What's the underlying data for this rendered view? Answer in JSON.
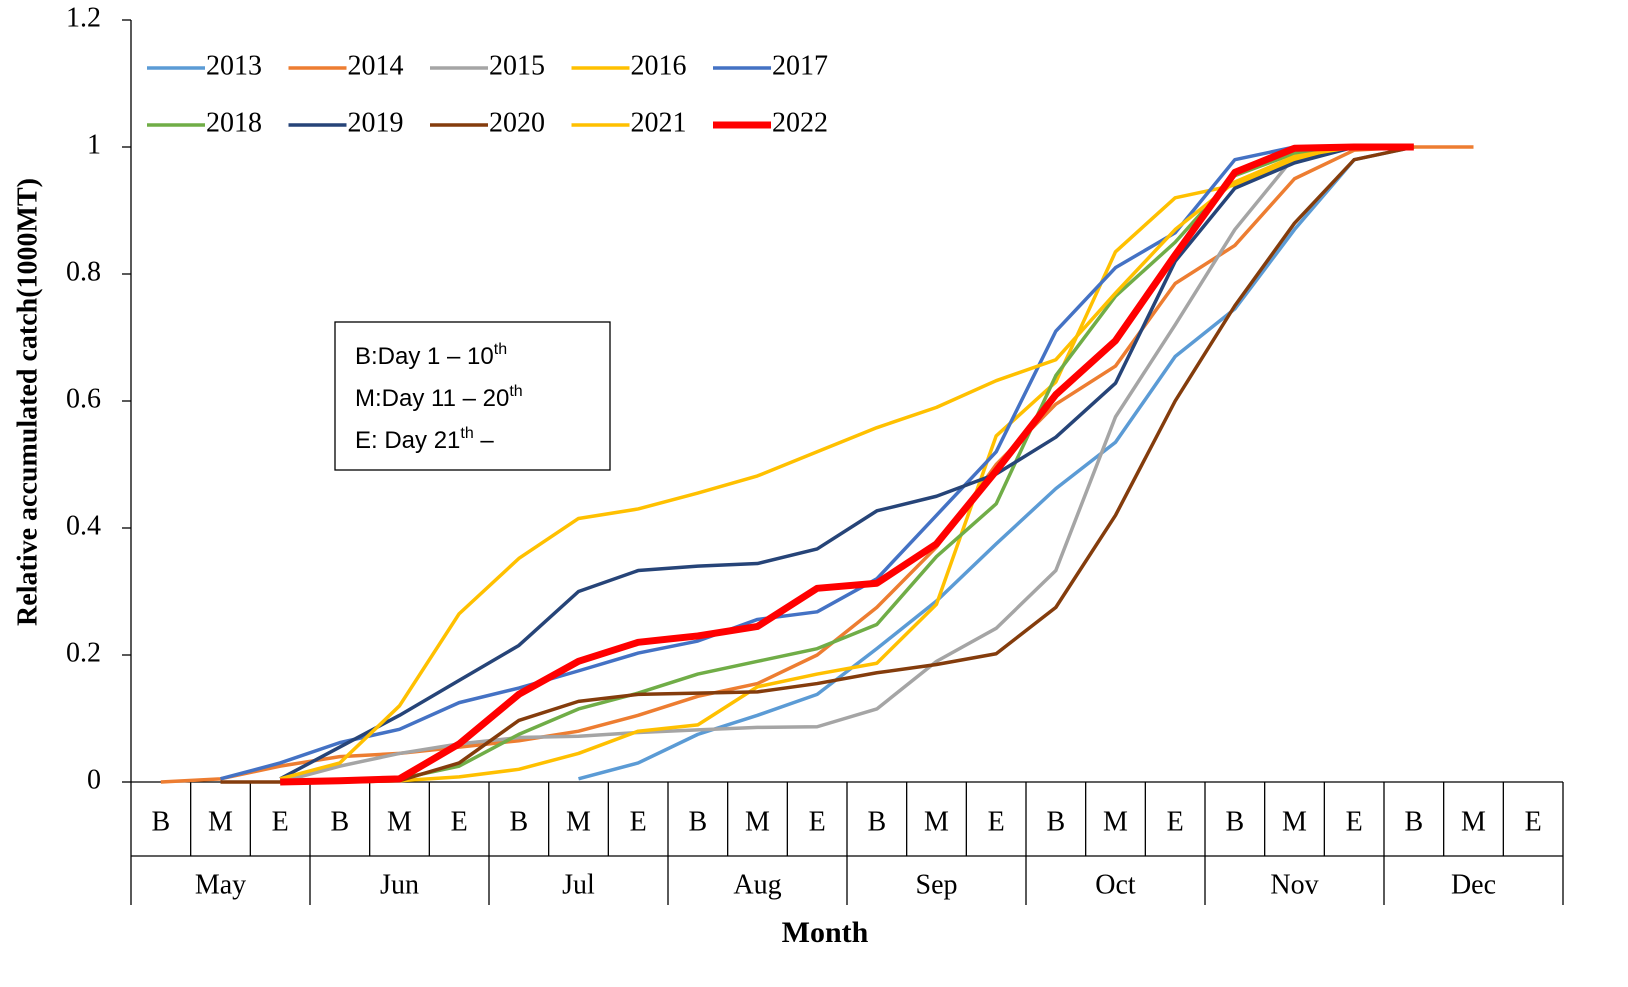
{
  "chart_data": {
    "type": "line",
    "xlabel": "Month",
    "ylabel": "Relative accumulated catch(1000MT)",
    "categories": [
      "B",
      "M",
      "E",
      "B",
      "M",
      "E",
      "B",
      "M",
      "E",
      "B",
      "M",
      "E",
      "B",
      "M",
      "E",
      "B",
      "M",
      "E",
      "B",
      "M",
      "E",
      "B",
      "M",
      "E"
    ],
    "x_groups": [
      "May",
      "Jun",
      "Jul",
      "Aug",
      "Sep",
      "Oct",
      "Nov",
      "Dec"
    ],
    "ylim": [
      0,
      1.2
    ],
    "yticks": [
      0,
      0.2,
      0.4,
      0.6,
      0.8,
      1,
      1.2
    ],
    "grid": false,
    "legend": "top-left",
    "annotation": [
      {
        "text": "B:Day 1 – 10",
        "sup": "th"
      },
      {
        "text": "M:Day 11 – 20",
        "sup": "th"
      },
      {
        "text": "E: Day 21",
        "sup": "th",
        "after": " –"
      }
    ],
    "series": [
      {
        "name": "2013",
        "color": "#5B9BD5",
        "width": 3.5,
        "values": [
          null,
          null,
          null,
          null,
          null,
          null,
          null,
          0.005,
          0.03,
          0.075,
          0.105,
          0.138,
          0.21,
          0.285,
          0.375,
          0.462,
          0.535,
          0.67,
          0.745,
          0.87,
          0.98,
          1,
          null,
          null
        ]
      },
      {
        "name": "2014",
        "color": "#ED7D31",
        "width": 3.5,
        "values": [
          0,
          0.005,
          0.025,
          0.04,
          0.045,
          0.055,
          0.065,
          0.08,
          0.105,
          0.135,
          0.155,
          0.2,
          0.275,
          0.37,
          0.5,
          0.595,
          0.655,
          0.785,
          0.845,
          0.95,
          0.995,
          1,
          1,
          null
        ]
      },
      {
        "name": "2015",
        "color": "#A5A5A5",
        "width": 3.5,
        "values": [
          null,
          null,
          0,
          0.025,
          0.045,
          0.06,
          0.07,
          0.072,
          0.078,
          0.082,
          0.086,
          0.087,
          0.115,
          0.19,
          0.242,
          0.333,
          0.575,
          0.72,
          0.87,
          0.985,
          1,
          1,
          null,
          null
        ]
      },
      {
        "name": "2016",
        "color": "#FFC000",
        "width": 3.5,
        "values": [
          null,
          null,
          null,
          0,
          0.002,
          0.008,
          0.02,
          0.045,
          0.08,
          0.09,
          0.15,
          0.17,
          0.187,
          0.28,
          0.545,
          0.63,
          0.835,
          0.92,
          0.94,
          0.98,
          1,
          1,
          null,
          null
        ]
      },
      {
        "name": "2017",
        "color": "#4472C4",
        "width": 3.5,
        "values": [
          null,
          0.005,
          0.03,
          0.062,
          0.083,
          0.125,
          0.148,
          0.175,
          0.203,
          0.222,
          0.256,
          0.268,
          0.32,
          0.42,
          0.52,
          0.71,
          0.81,
          0.865,
          0.98,
          1,
          1,
          1,
          null,
          null
        ]
      },
      {
        "name": "2018",
        "color": "#70AD47",
        "width": 3.5,
        "values": [
          null,
          null,
          null,
          0,
          0.005,
          0.025,
          0.075,
          0.115,
          0.14,
          0.17,
          0.19,
          0.21,
          0.248,
          0.355,
          0.438,
          0.64,
          0.765,
          0.85,
          0.955,
          0.99,
          1,
          1,
          null,
          null
        ]
      },
      {
        "name": "2019",
        "color": "#264478",
        "width": 3.5,
        "values": [
          null,
          null,
          0.005,
          0.055,
          0.105,
          0.16,
          0.215,
          0.3,
          0.333,
          0.34,
          0.344,
          0.367,
          0.427,
          0.45,
          0.485,
          0.543,
          0.628,
          0.82,
          0.935,
          0.975,
          1,
          1,
          null,
          null
        ]
      },
      {
        "name": "2020",
        "color": "#843C0C",
        "width": 3.5,
        "values": [
          null,
          0,
          0,
          0,
          0.002,
          0.03,
          0.097,
          0.127,
          0.138,
          0.14,
          0.142,
          0.155,
          0.172,
          0.185,
          0.202,
          0.275,
          0.42,
          0.6,
          0.75,
          0.88,
          0.98,
          1,
          null,
          null
        ]
      },
      {
        "name": "2021",
        "color": "#FFC000",
        "width": 3.5,
        "values": [
          null,
          null,
          0.005,
          0.03,
          0.12,
          0.265,
          0.352,
          0.415,
          0.43,
          0.455,
          0.482,
          0.52,
          0.558,
          0.59,
          0.632,
          0.665,
          0.77,
          0.87,
          0.945,
          0.985,
          1,
          1,
          null,
          null
        ]
      },
      {
        "name": "2022",
        "color": "#FF0000",
        "width": 7,
        "values": [
          null,
          null,
          0,
          0.002,
          0.005,
          0.06,
          0.138,
          0.19,
          0.22,
          0.23,
          0.245,
          0.305,
          0.313,
          0.375,
          0.49,
          0.61,
          0.695,
          0.83,
          0.96,
          0.998,
          1,
          1,
          null,
          null
        ]
      }
    ]
  }
}
